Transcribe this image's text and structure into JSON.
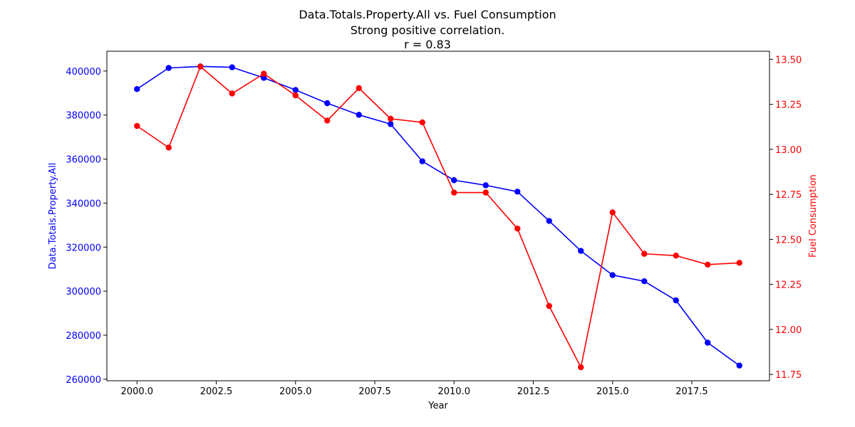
{
  "chart_data": {
    "type": "line",
    "title": "Data.Totals.Property.All vs. Fuel Consumption",
    "subtitle": "Strong positive correlation.",
    "annotation": "r = 0.83",
    "xlabel": "Year",
    "y_left_label": "Data.Totals.Property.All",
    "y_right_label": "Fuel Consumption",
    "xlim": [
      1999.05,
      2019.95
    ],
    "x_ticks": [
      "2000.0",
      "2002.5",
      "2005.0",
      "2007.5",
      "2010.0",
      "2012.5",
      "2015.0",
      "2017.5"
    ],
    "x_tick_values": [
      2000,
      2002.5,
      2005,
      2007.5,
      2010,
      2012.5,
      2015,
      2017.5
    ],
    "y_left_lim": [
      259300,
      409000
    ],
    "y_left_ticks": [
      "260000",
      "280000",
      "300000",
      "320000",
      "340000",
      "360000",
      "380000",
      "400000"
    ],
    "y_left_tick_values": [
      260000,
      280000,
      300000,
      320000,
      340000,
      360000,
      380000,
      400000
    ],
    "y_right_lim": [
      11.715,
      13.545
    ],
    "y_right_ticks": [
      "11.75",
      "12.00",
      "12.25",
      "12.50",
      "12.75",
      "13.00",
      "13.25",
      "13.50"
    ],
    "y_right_tick_values": [
      11.75,
      12.0,
      12.25,
      12.5,
      12.75,
      13.0,
      13.25,
      13.5
    ],
    "x": [
      2000,
      2001,
      2002,
      2003,
      2004,
      2005,
      2006,
      2007,
      2008,
      2009,
      2010,
      2011,
      2012,
      2013,
      2014,
      2015,
      2016,
      2017,
      2018,
      2019
    ],
    "series": [
      {
        "name": "Data.Totals.Property.All",
        "axis": "left",
        "color": "#0000ff",
        "values": [
          391800,
          401400,
          402100,
          401700,
          396900,
          391400,
          385400,
          380100,
          375900,
          359000,
          350400,
          348100,
          345200,
          331900,
          318300,
          307300,
          304500,
          295800,
          276600,
          266200
        ]
      },
      {
        "name": "Fuel Consumption",
        "axis": "right",
        "color": "#ff0000",
        "values": [
          13.13,
          13.01,
          13.46,
          13.31,
          13.42,
          13.3,
          13.16,
          13.34,
          13.17,
          13.15,
          12.76,
          12.76,
          12.56,
          12.13,
          11.79,
          12.65,
          12.42,
          12.41,
          12.36,
          12.37
        ]
      }
    ],
    "grid": false,
    "legend": "none"
  }
}
